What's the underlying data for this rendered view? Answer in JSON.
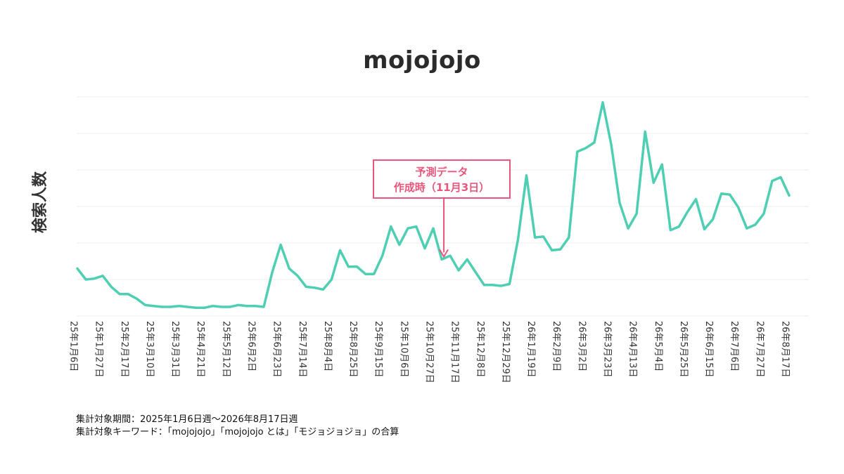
{
  "chart_data": {
    "type": "line",
    "title": "mojojojo",
    "ylabel": "検索人数",
    "xlabel": "",
    "y_ticks_shown": false,
    "grid": "horizontal",
    "ylim": [
      0,
      12
    ],
    "x_tick_labels": [
      "25年1月6日",
      "25年1月27日",
      "25年2月17日",
      "25年3月10日",
      "25年3月31日",
      "25年4月21日",
      "25年5月12日",
      "25年6月2日",
      "25年6月23日",
      "25年7月14日",
      "25年8月4日",
      "25年8月25日",
      "25年9月15日",
      "25年10月6日",
      "25年10月27日",
      "25年11月17日",
      "25年12月8日",
      "25年12月29日",
      "26年1月19日",
      "26年2月9日",
      "26年3月2日",
      "26年3月23日",
      "26年4月13日",
      "26年5月4日",
      "26年5月25日",
      "26年6月15日",
      "26年7月6日",
      "26年7月27日",
      "26年8月17日"
    ],
    "series": [
      {
        "color": "#4ecfb3",
        "values": [
          2.6,
          2.0,
          2.05,
          2.2,
          1.6,
          1.2,
          1.2,
          0.95,
          0.6,
          0.55,
          0.5,
          0.5,
          0.55,
          0.5,
          0.45,
          0.45,
          0.55,
          0.5,
          0.5,
          0.6,
          0.55,
          0.55,
          0.5,
          2.4,
          3.9,
          2.6,
          2.2,
          1.6,
          1.55,
          1.45,
          2.0,
          3.6,
          2.7,
          2.7,
          2.3,
          2.3,
          3.3,
          4.9,
          3.9,
          4.8,
          4.9,
          3.7,
          4.8,
          3.1,
          3.3,
          2.5,
          3.1,
          2.4,
          1.7,
          1.7,
          1.65,
          1.75,
          4.2,
          7.7,
          4.3,
          4.35,
          3.6,
          3.65,
          4.3,
          9.0,
          9.2,
          9.5,
          11.7,
          9.4,
          6.2,
          4.8,
          5.6,
          10.1,
          7.3,
          8.3,
          4.7,
          4.9,
          5.7,
          6.4,
          4.75,
          5.3,
          6.7,
          6.65,
          5.95,
          4.8,
          5.0,
          5.6,
          7.4,
          7.6,
          6.6
        ]
      }
    ],
    "annotation": {
      "line1": "予測データ",
      "line2": "作成時（11月3日）",
      "point_index": 43,
      "color": "#e8577b"
    }
  },
  "footnotes": {
    "period": "集計対象期間：2025年1月6日週〜2026年8月17日週",
    "keywords": "集計対象キーワード：「mojojojo」「mojojojo とは」「モジョジョジョ」の合算"
  }
}
